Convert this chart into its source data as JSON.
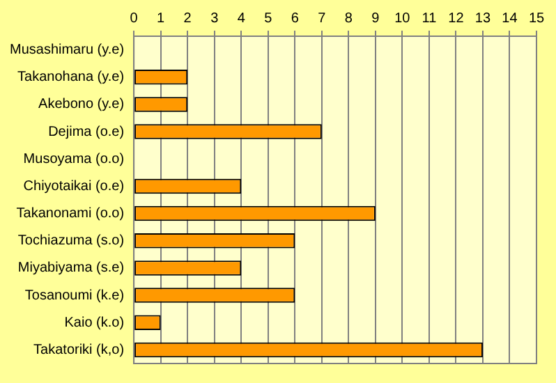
{
  "chart_data": {
    "type": "bar",
    "orientation": "horizontal",
    "categories": [
      "Musashimaru (y.e)",
      "Takanohana (y.e)",
      "Akebono (y.e)",
      "Dejima (o.e)",
      "Musoyama (o.o)",
      "Chiyotaikai (o.e)",
      "Takanonami (o.o)",
      "Tochiazuma (s.o)",
      "Miyabiyama (s.e)",
      "Tosanoumi (k.e)",
      "Kaio (k.o)",
      "Takatoriki (k,o)"
    ],
    "values": [
      0,
      2,
      2,
      7,
      0,
      4,
      9,
      6,
      4,
      6,
      1,
      13
    ],
    "color": "#ff9900",
    "xlim": [
      0,
      15
    ],
    "xticks": [
      0,
      1,
      2,
      3,
      4,
      5,
      6,
      7,
      8,
      9,
      10,
      11,
      12,
      13,
      14,
      15
    ],
    "grid": "x",
    "legend": false
  }
}
